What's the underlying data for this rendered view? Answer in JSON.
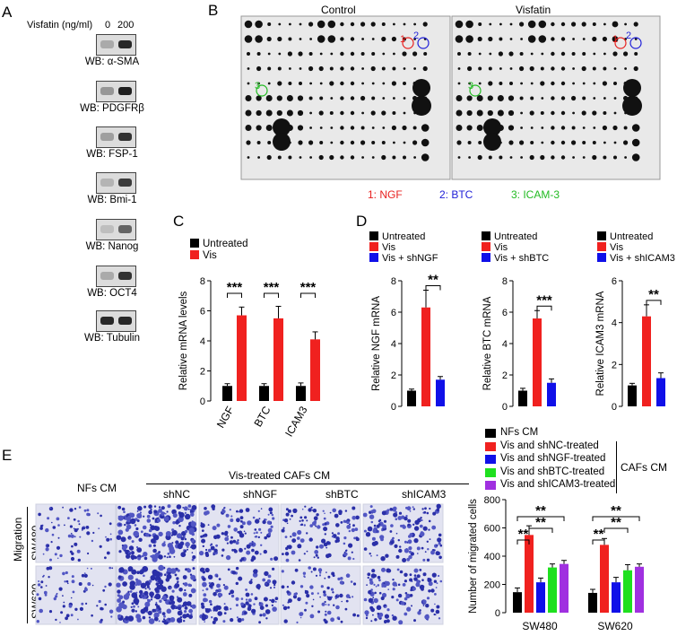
{
  "panel_labels": [
    "A",
    "B",
    "C",
    "D",
    "E"
  ],
  "panelA": {
    "header": "Visfatin (ng/ml)",
    "doses": [
      "0",
      "200"
    ],
    "blots": [
      "WB: α-SMA",
      "WB: PDGFRβ",
      "WB: FSP-1",
      "WB: Bmi-1",
      "WB: Nanog",
      "WB: OCT4",
      "WB: Tubulin"
    ]
  },
  "panelB": {
    "titles": [
      "Control",
      "Visfatin"
    ],
    "markers": [
      "1",
      "2",
      "3"
    ],
    "legend": [
      {
        "text": "1: NGF",
        "color": "#e8211f"
      },
      {
        "text": "2: BTC",
        "color": "#2020d8"
      },
      {
        "text": "3: ICAM-3",
        "color": "#22bb22"
      }
    ]
  },
  "colors": {
    "black": "#000000",
    "red": "#f0211f",
    "blue": "#1010e8",
    "green": "#1fe01f",
    "purple": "#a030e0"
  },
  "panelD_titles": {
    "ngf": "Relative NGF mRNA",
    "btc": "Relative BTC mRNA",
    "icam": "Relative ICAM3 mRNA"
  },
  "panelE": {
    "col_headers": [
      "NFs CM",
      "Vis-treated CAFs CM"
    ],
    "sub_headers": [
      "shNC",
      "shNGF",
      "shBTC",
      "shICAM3"
    ],
    "row_labels": [
      "SW480",
      "SW620"
    ],
    "side_label": "Migration",
    "legend_group": "CAFs CM"
  },
  "chart_data": [
    {
      "id": "C",
      "type": "bar",
      "categories": [
        "NGF",
        "BTC",
        "ICAM3"
      ],
      "series": [
        {
          "name": "Untreated",
          "values": [
            1.0,
            1.0,
            1.0
          ],
          "errors": [
            0.15,
            0.15,
            0.2
          ]
        },
        {
          "name": "Vis",
          "values": [
            5.7,
            5.5,
            4.1
          ],
          "errors": [
            0.55,
            0.8,
            0.5
          ]
        }
      ],
      "ylabel": "Relative mRNA levels",
      "ylim": [
        0,
        8
      ],
      "yticks": [
        0,
        2,
        4,
        6,
        8
      ],
      "significance": [
        "***",
        "***",
        "***"
      ]
    },
    {
      "id": "D-NGF",
      "type": "bar",
      "categories": [
        "Untreated",
        "Vis",
        "Vis + shNGF"
      ],
      "series": [
        {
          "values": [
            1.0,
            6.3,
            1.7
          ],
          "errors": [
            0.1,
            1.1,
            0.2
          ]
        }
      ],
      "legend": [
        "Untreated",
        "Vis",
        "Vis + shNGF"
      ],
      "ylabel": "Relative NGF mRNA",
      "ylim": [
        0,
        8
      ],
      "yticks": [
        0,
        2,
        4,
        6,
        8
      ],
      "significance": "**"
    },
    {
      "id": "D-BTC",
      "type": "bar",
      "categories": [
        "Untreated",
        "Vis",
        "Vis + shBTC"
      ],
      "series": [
        {
          "values": [
            1.0,
            5.6,
            1.5
          ],
          "errors": [
            0.15,
            0.5,
            0.25
          ]
        }
      ],
      "legend": [
        "Untreated",
        "Vis",
        "Vis + shBTC"
      ],
      "ylabel": "Relative BTC mRNA",
      "ylim": [
        0,
        8
      ],
      "yticks": [
        0,
        2,
        4,
        6,
        8
      ],
      "significance": "***"
    },
    {
      "id": "D-ICAM3",
      "type": "bar",
      "categories": [
        "Untreated",
        "Vis",
        "Vis + shICAM3"
      ],
      "series": [
        {
          "values": [
            1.0,
            4.3,
            1.35
          ],
          "errors": [
            0.1,
            0.55,
            0.25
          ]
        }
      ],
      "legend": [
        "Untreated",
        "Vis",
        "Vis + shICAM3"
      ],
      "ylabel": "Relative ICAM3 mRNA",
      "ylim": [
        0,
        6
      ],
      "yticks": [
        0,
        2,
        4,
        6
      ],
      "significance": "**"
    },
    {
      "id": "E",
      "type": "bar",
      "categories": [
        "SW480",
        "SW620"
      ],
      "series": [
        {
          "name": "NFs CM",
          "values": [
            145,
            140
          ],
          "errors": [
            30,
            25
          ]
        },
        {
          "name": "Vis and shNC-treated",
          "values": [
            550,
            480
          ],
          "errors": [
            65,
            45
          ]
        },
        {
          "name": "Vis and shNGF-treated",
          "values": [
            215,
            215
          ],
          "errors": [
            30,
            35
          ]
        },
        {
          "name": "Vis and shBTC-treated",
          "values": [
            320,
            300
          ],
          "errors": [
            25,
            40
          ]
        },
        {
          "name": "Vis and shICAM3-treated",
          "values": [
            345,
            325
          ],
          "errors": [
            25,
            20
          ]
        }
      ],
      "ylabel": "Number of migrated cells",
      "ylim": [
        0,
        800
      ],
      "yticks": [
        0,
        200,
        400,
        600,
        800
      ],
      "significance": [
        "**",
        "**",
        "**"
      ]
    }
  ]
}
